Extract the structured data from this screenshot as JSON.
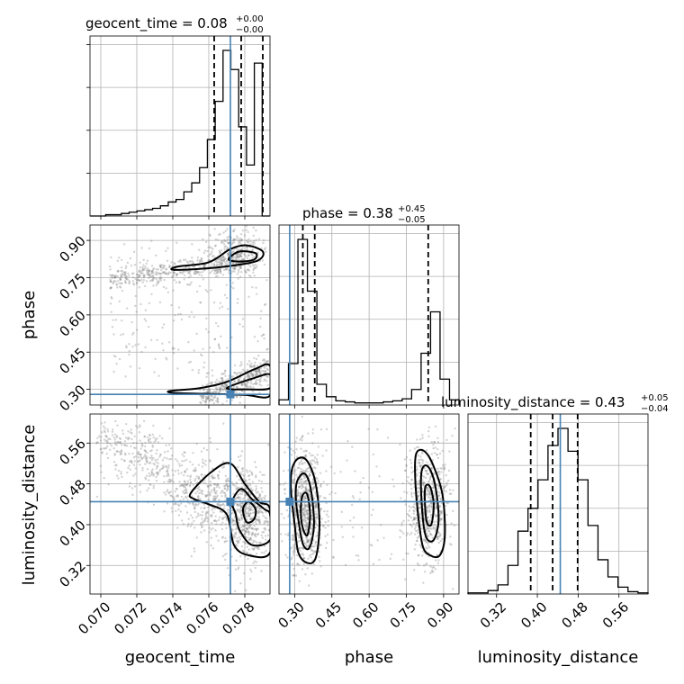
{
  "chart_data": {
    "type": "corner",
    "parameters": [
      "geocent_time",
      "phase",
      "luminosity_distance"
    ],
    "axis_labels": [
      "geocent_time",
      "phase",
      "luminosity_distance"
    ],
    "ranges": {
      "geocent_time": [
        0.0694,
        0.0794
      ],
      "phase": [
        0.237,
        0.962
      ],
      "luminosity_distance": [
        0.264,
        0.617
      ]
    },
    "ticks": {
      "geocent_time": [
        "0.070",
        "0.072",
        "0.074",
        "0.076",
        "0.078"
      ],
      "phase": [
        "0.30",
        "0.45",
        "0.60",
        "0.75",
        "0.90"
      ],
      "luminosity_distance": [
        "0.32",
        "0.40",
        "0.48",
        "0.56"
      ]
    },
    "titles": [
      {
        "param": "geocent_time",
        "prefix": "geocent_time = ",
        "median": "0.08",
        "plus": "+0.00",
        "minus": "−0.00"
      },
      {
        "param": "phase",
        "prefix": "phase = ",
        "median": "0.38",
        "plus": "+0.45",
        "minus": "−0.05"
      },
      {
        "param": "luminosity_distance",
        "prefix": "luminosity_distance = ",
        "median": "0.43",
        "plus": "+0.05",
        "minus": "−0.04"
      }
    ],
    "truths": {
      "geocent_time": 0.0772,
      "phase": 0.28,
      "luminosity_distance": 0.445
    },
    "quantiles": {
      "geocent_time": [
        0.0763,
        0.0778,
        0.079
      ],
      "phase": [
        0.333,
        0.381,
        0.838
      ],
      "luminosity_distance": [
        0.387,
        0.43,
        0.479
      ]
    },
    "histograms": {
      "geocent_time": {
        "edges_range": [
          0.0694,
          0.0794
        ],
        "counts": [
          0,
          0,
          1,
          1,
          2,
          3,
          4,
          5,
          6,
          8,
          11,
          13,
          19,
          26,
          38,
          60,
          90,
          130,
          115,
          70,
          40,
          120,
          0
        ]
      },
      "phase": {
        "edges_range": [
          0.237,
          0.962
        ],
        "counts": [
          5,
          40,
          160,
          110,
          20,
          8,
          4,
          3,
          2,
          2,
          2,
          3,
          4,
          6,
          15,
          50,
          90,
          25,
          5
        ]
      },
      "luminosity_distance": {
        "edges_range": [
          0.264,
          0.617
        ],
        "counts": [
          1,
          1,
          3,
          8,
          25,
          55,
          75,
          100,
          130,
          145,
          125,
          100,
          60,
          30,
          15,
          6,
          2,
          1
        ]
      }
    },
    "contour_color": "#000000",
    "truth_color": "#4682b4"
  }
}
